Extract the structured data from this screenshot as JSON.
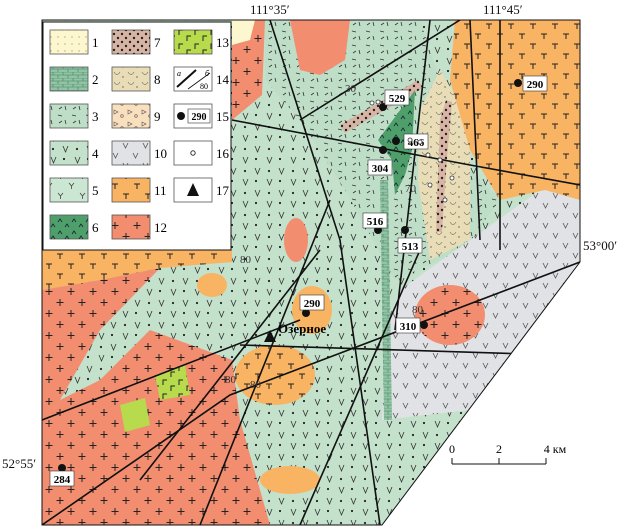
{
  "coordinates": {
    "top_left": "111°35′",
    "top_right": "111°45′",
    "right": "53°00′",
    "left": "52°55′"
  },
  "legend": [
    {
      "num": "1",
      "fill": "#fdf7cf",
      "pattern": "dots-fine"
    },
    {
      "num": "2",
      "fill": "#8fc4a4",
      "pattern": "bricks"
    },
    {
      "num": "3",
      "fill": "#bfdec8",
      "pattern": "dashes"
    },
    {
      "num": "4",
      "fill": "#c3e1cb",
      "pattern": "v-dots"
    },
    {
      "num": "5",
      "fill": "#cbe6d2",
      "pattern": "y-marks"
    },
    {
      "num": "6",
      "fill": "#4f9f6b",
      "pattern": "carets"
    },
    {
      "num": "7",
      "fill": "#d7b4a3",
      "pattern": "dots-bold"
    },
    {
      "num": "8",
      "fill": "#e9ddb8",
      "pattern": "arcs-dots"
    },
    {
      "num": "9",
      "fill": "#f9dfbd",
      "pattern": "triangles-circles"
    },
    {
      "num": "10",
      "fill": "#e0e2e5",
      "pattern": "v-marks"
    },
    {
      "num": "11",
      "fill": "#f9b463",
      "pattern": "t-marks"
    },
    {
      "num": "12",
      "fill": "#f28d6f",
      "pattern": "crosses"
    },
    {
      "num": "13",
      "fill": "#b8da4d",
      "pattern": "gamma-marks"
    },
    {
      "num": "14",
      "fill": "#ffffff",
      "pattern": "faults",
      "a": "а",
      "b": "б",
      "dip": "80"
    },
    {
      "num": "15",
      "fill": "#ffffff",
      "pattern": "sample-point",
      "sample": "290"
    },
    {
      "num": "16",
      "fill": "#ffffff",
      "pattern": "ring"
    },
    {
      "num": "17",
      "fill": "#ffffff",
      "pattern": "triangle"
    }
  ],
  "samples": [
    "529",
    "466",
    "304",
    "516",
    "513",
    "290",
    "310",
    "290",
    "284"
  ],
  "dips": [
    "30",
    "70",
    "80",
    "80",
    "80",
    "80"
  ],
  "settlement": "Озерное",
  "scale": {
    "ticks": [
      "0",
      "2",
      "4 км"
    ]
  }
}
